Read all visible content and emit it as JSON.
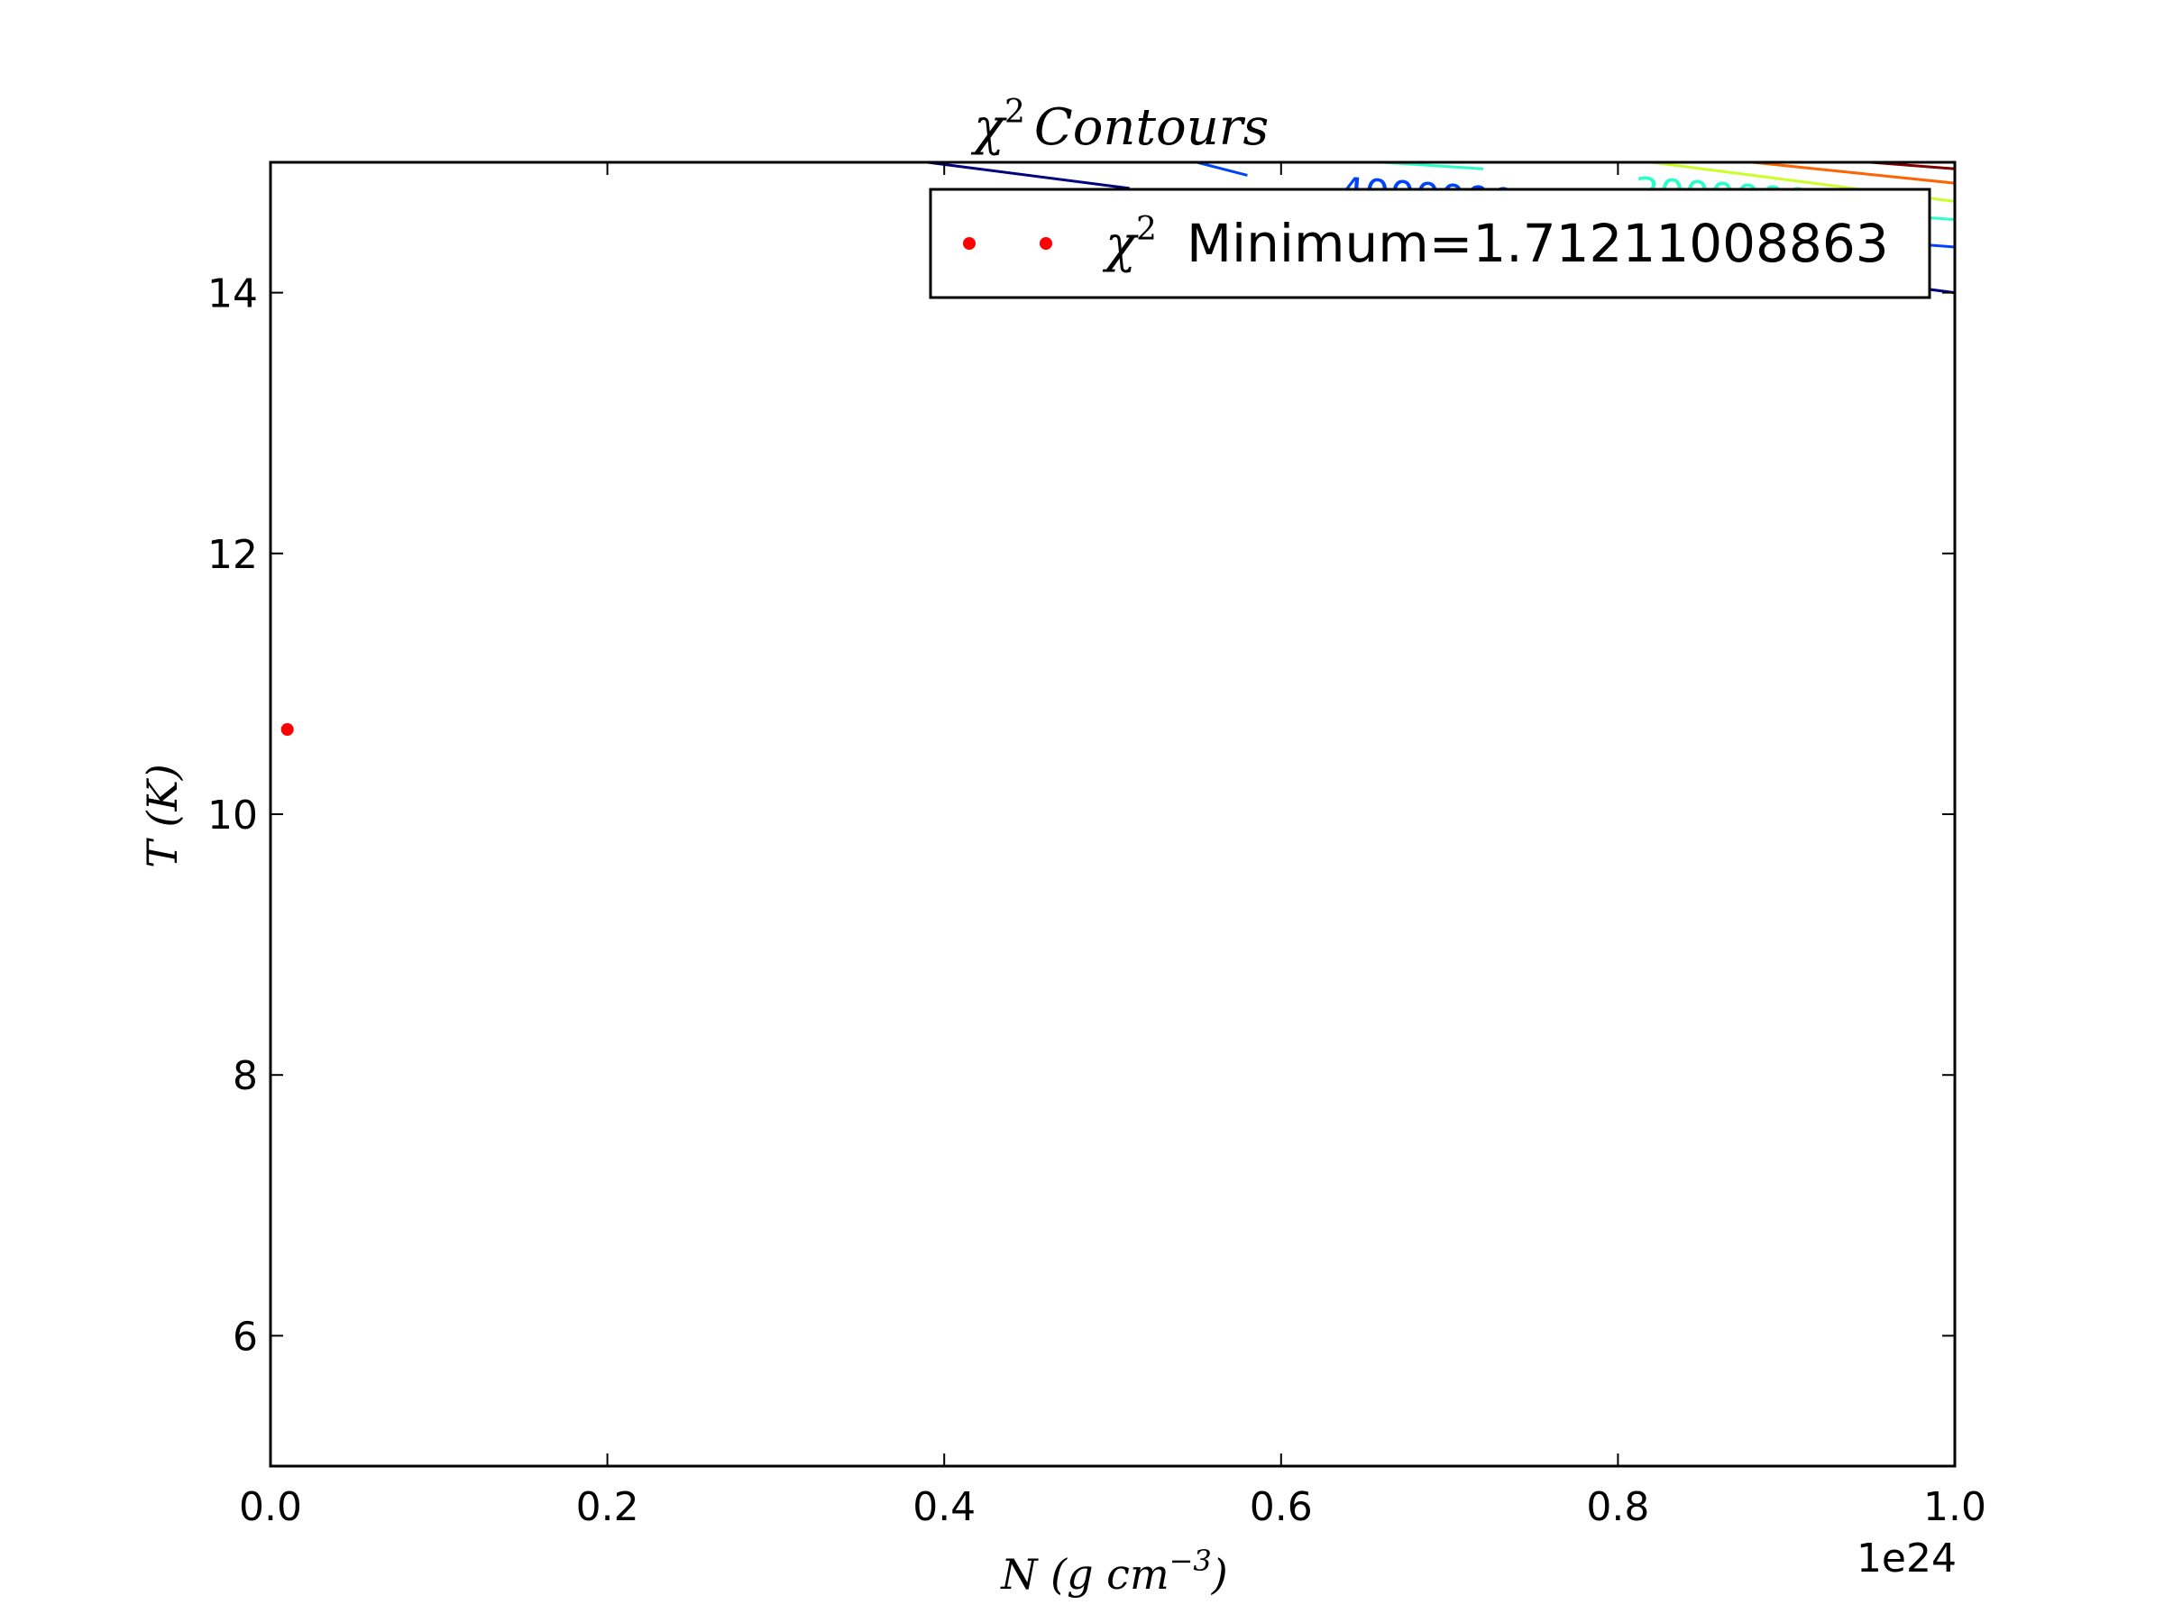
{
  "chart_data": {
    "type": "contour",
    "title": "χ² Contours",
    "title_parts": {
      "symbol": "χ",
      "sup": "2",
      "rest": "Contours"
    },
    "xlabel": "N (g cm⁻³)",
    "xlabel_parts": {
      "main": "N (g cm",
      "sup": "−3",
      "end": ")"
    },
    "ylabel": "T (K)",
    "xlim": [
      0.0,
      1.0
    ],
    "ylim": [
      5,
      15
    ],
    "x_offset_label": "1e24",
    "x_ticks": [
      0.0,
      0.2,
      0.4,
      0.6,
      0.8,
      1.0
    ],
    "x_tick_labels": [
      "0.0",
      "0.2",
      "0.4",
      "0.6",
      "0.8",
      "1.0"
    ],
    "y_ticks": [
      6,
      8,
      10,
      12,
      14
    ],
    "y_tick_labels": [
      "6",
      "8",
      "10",
      "12",
      "14"
    ],
    "grid": false,
    "legend": {
      "placement": "top-right",
      "label": "Minimum=1.71211008863",
      "label_symbol": "χ",
      "label_sup": "2"
    },
    "minimum_point": {
      "x": 0.01,
      "y": 10.65,
      "color": "#ff0000"
    },
    "contours": [
      {
        "color": "#00007f",
        "points": [
          [
            0.39,
            15.0
          ],
          [
            0.51,
            14.8
          ]
        ]
      },
      {
        "color": "#00007f",
        "points": [
          [
            0.82,
            14.3
          ],
          [
            1.0,
            14.0
          ]
        ]
      },
      {
        "color": "#0043ff",
        "points": [
          [
            0.55,
            15.0
          ],
          [
            0.58,
            14.9
          ]
        ]
      },
      {
        "color": "#0043ff",
        "points": [
          [
            0.9,
            14.45
          ],
          [
            1.0,
            14.35
          ]
        ]
      },
      {
        "color": "#2affca",
        "points": [
          [
            0.66,
            15.0
          ],
          [
            0.72,
            14.95
          ]
        ]
      },
      {
        "color": "#2affca",
        "points": [
          [
            0.94,
            14.62
          ],
          [
            1.0,
            14.56
          ]
        ]
      },
      {
        "color": "#caff2a",
        "points": [
          [
            0.82,
            15.0
          ],
          [
            1.0,
            14.7
          ]
        ]
      },
      {
        "color": "#ff6200",
        "points": [
          [
            0.88,
            15.0
          ],
          [
            1.0,
            14.84
          ]
        ]
      },
      {
        "color": "#7f0000",
        "points": [
          [
            0.95,
            15.0
          ],
          [
            1.0,
            14.95
          ]
        ]
      }
    ],
    "contour_labels": [
      {
        "text": "4000000000",
        "x": 0.635,
        "y": 14.88,
        "color": "#0043ff"
      },
      {
        "text": "3000000000",
        "x": 0.81,
        "y": 14.88,
        "color": "#2affca"
      }
    ],
    "colors": {
      "axes": "#000000",
      "minimum_marker": "#ff0000"
    }
  }
}
